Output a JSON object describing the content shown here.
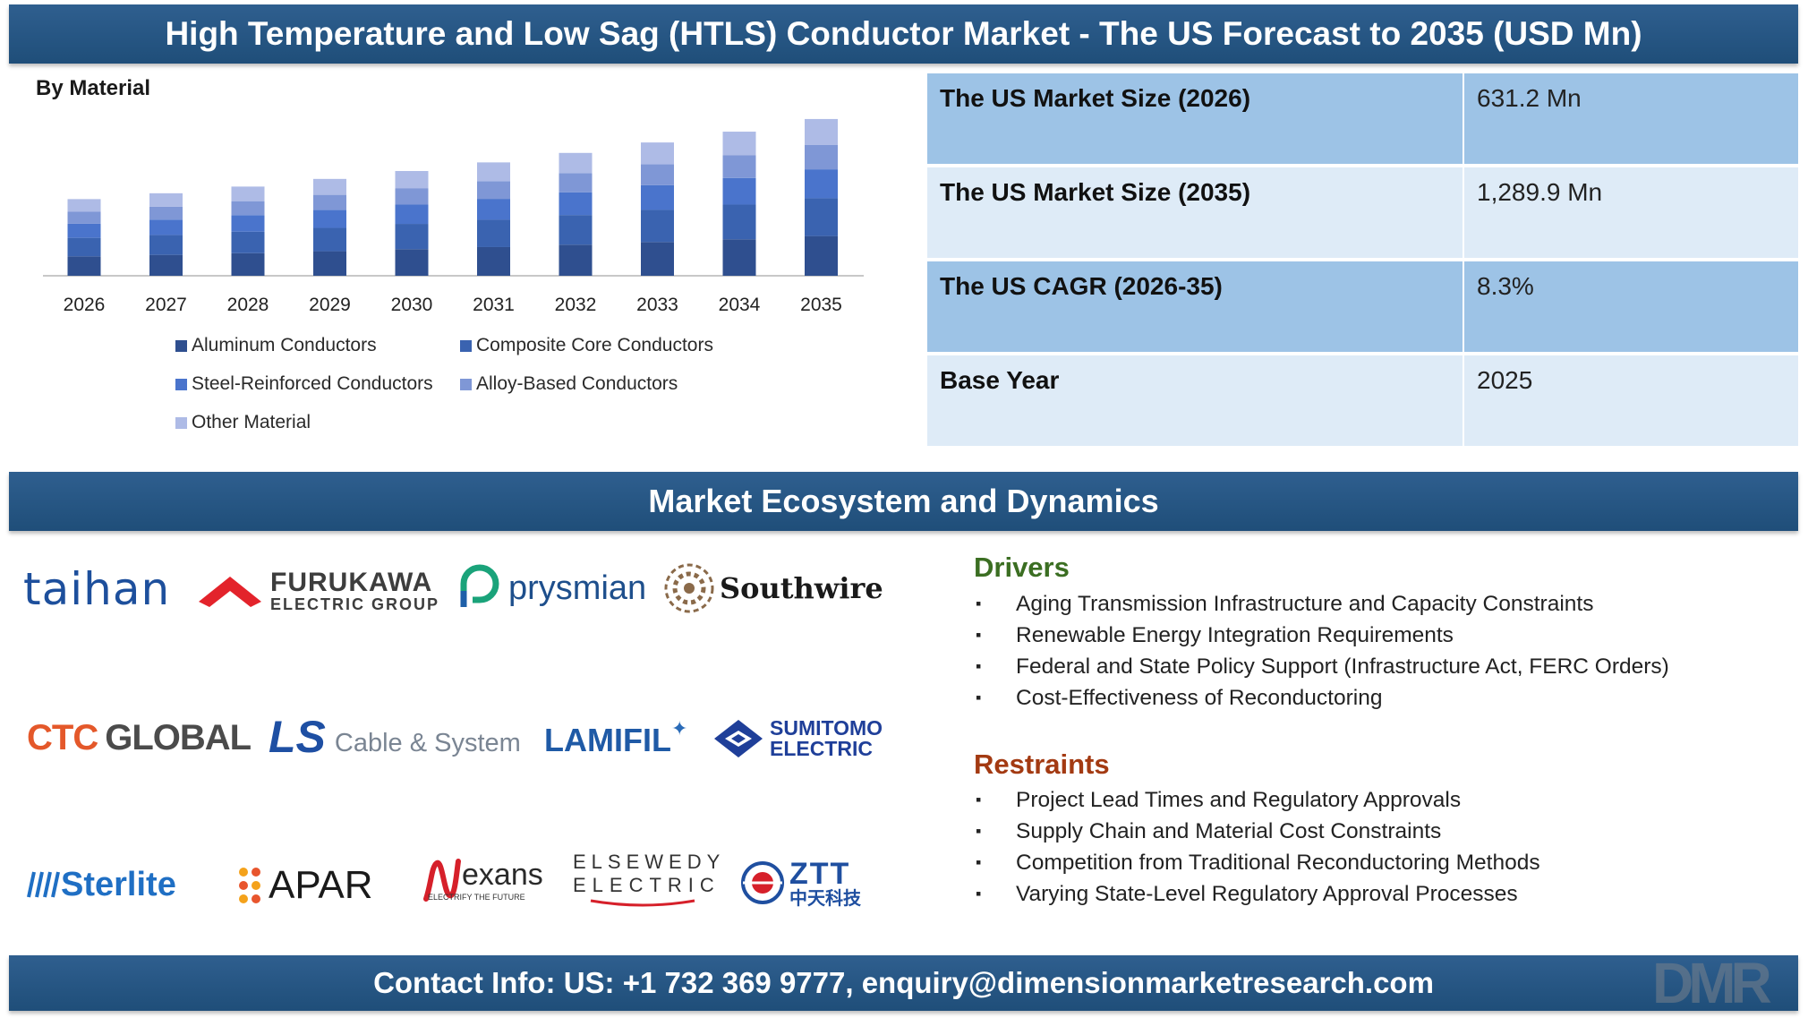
{
  "title": "High Temperature and Low Sag (HTLS) Conductor Market - The US Forecast to 2035 (USD Mn)",
  "chart_data": {
    "type": "bar",
    "stacked": true,
    "subtitle": "By Material",
    "categories": [
      "2026",
      "2027",
      "2028",
      "2029",
      "2030",
      "2031",
      "2032",
      "2033",
      "2034",
      "2035"
    ],
    "series": [
      {
        "name": "Aluminum Conductors",
        "color": "#2f4f8f",
        "values": [
          160,
          172,
          186,
          202,
          219,
          236,
          256,
          278,
          300,
          327
        ]
      },
      {
        "name": "Composite Core Conductors",
        "color": "#3a63b0",
        "values": [
          152,
          164,
          177,
          192,
          208,
          225,
          244,
          264,
          286,
          311
        ]
      },
      {
        "name": "Steel-Reinforced Conductors",
        "color": "#4a74cc",
        "values": [
          116,
          126,
          136,
          147,
          159,
          172,
          187,
          203,
          219,
          238
        ]
      },
      {
        "name": "Alloy-Based Conductors",
        "color": "#7f97d6",
        "values": [
          99,
          106,
          115,
          125,
          135,
          146,
          158,
          172,
          186,
          202
        ]
      },
      {
        "name": "Other Material",
        "color": "#aebbe6",
        "values": [
          104,
          111,
          120,
          131,
          141,
          154,
          166,
          180,
          195,
          212
        ]
      }
    ],
    "ylim": [
      0,
      1400
    ],
    "legend_position": "bottom",
    "grid": false
  },
  "stats": [
    {
      "label": "The US Market Size (2026)",
      "value": "631.2 Mn"
    },
    {
      "label": "The US Market Size (2035)",
      "value": "1,289.9 Mn"
    },
    {
      "label": "The US CAGR (2026-35)",
      "value": "8.3%"
    },
    {
      "label": "Base Year",
      "value": "2025"
    }
  ],
  "ecosystem_title": "Market Ecosystem and Dynamics",
  "logos": {
    "taihan": "taihan",
    "furukawa_1": "FURUKAWA",
    "furukawa_2": "ELECTRIC GROUP",
    "prysmian": "prysmian",
    "southwire": "Southwire",
    "ctc": "CTC",
    "ctc_global": "GLOBAL",
    "ls": "LS",
    "ls_cable": "Cable & System",
    "lamifil": "LAMIFIL",
    "sumitomo_1": "SUMITOMO",
    "sumitomo_2": "ELECTRIC",
    "sterlite": "Sterlite",
    "apar": "APAR",
    "nexans": "exans",
    "nexans_tag": "ELECTRIFY THE FUTURE",
    "elsewedy_1": "ELSEWEDY",
    "elsewedy_2": "ELECTRIC",
    "ztt": "ZTT",
    "ztt_cn": "中天科技"
  },
  "drivers": {
    "heading": "Drivers",
    "items": [
      "Aging Transmission Infrastructure and Capacity Constraints",
      "Renewable Energy Integration Requirements",
      "Federal and State Policy Support (Infrastructure Act, FERC Orders)",
      "Cost-Effectiveness of Reconductoring"
    ]
  },
  "restraints": {
    "heading": "Restraints",
    "items": [
      "Project Lead Times and Regulatory Approvals",
      "Supply Chain and Material Cost Constraints",
      "Competition from Traditional Reconductoring Methods",
      "Varying State-Level Regulatory Approval Processes"
    ]
  },
  "contact": "Contact Info: US: +1 732 369 9777, enquiry@dimensionmarketresearch.com",
  "watermark": "DMR",
  "bullet": "▪",
  "colors": {
    "banner": "#1f4e79",
    "row_dark": "#9dc3e6",
    "row_light": "#deebf7",
    "drivers": "#3b6e22",
    "restraints": "#a33a12"
  }
}
